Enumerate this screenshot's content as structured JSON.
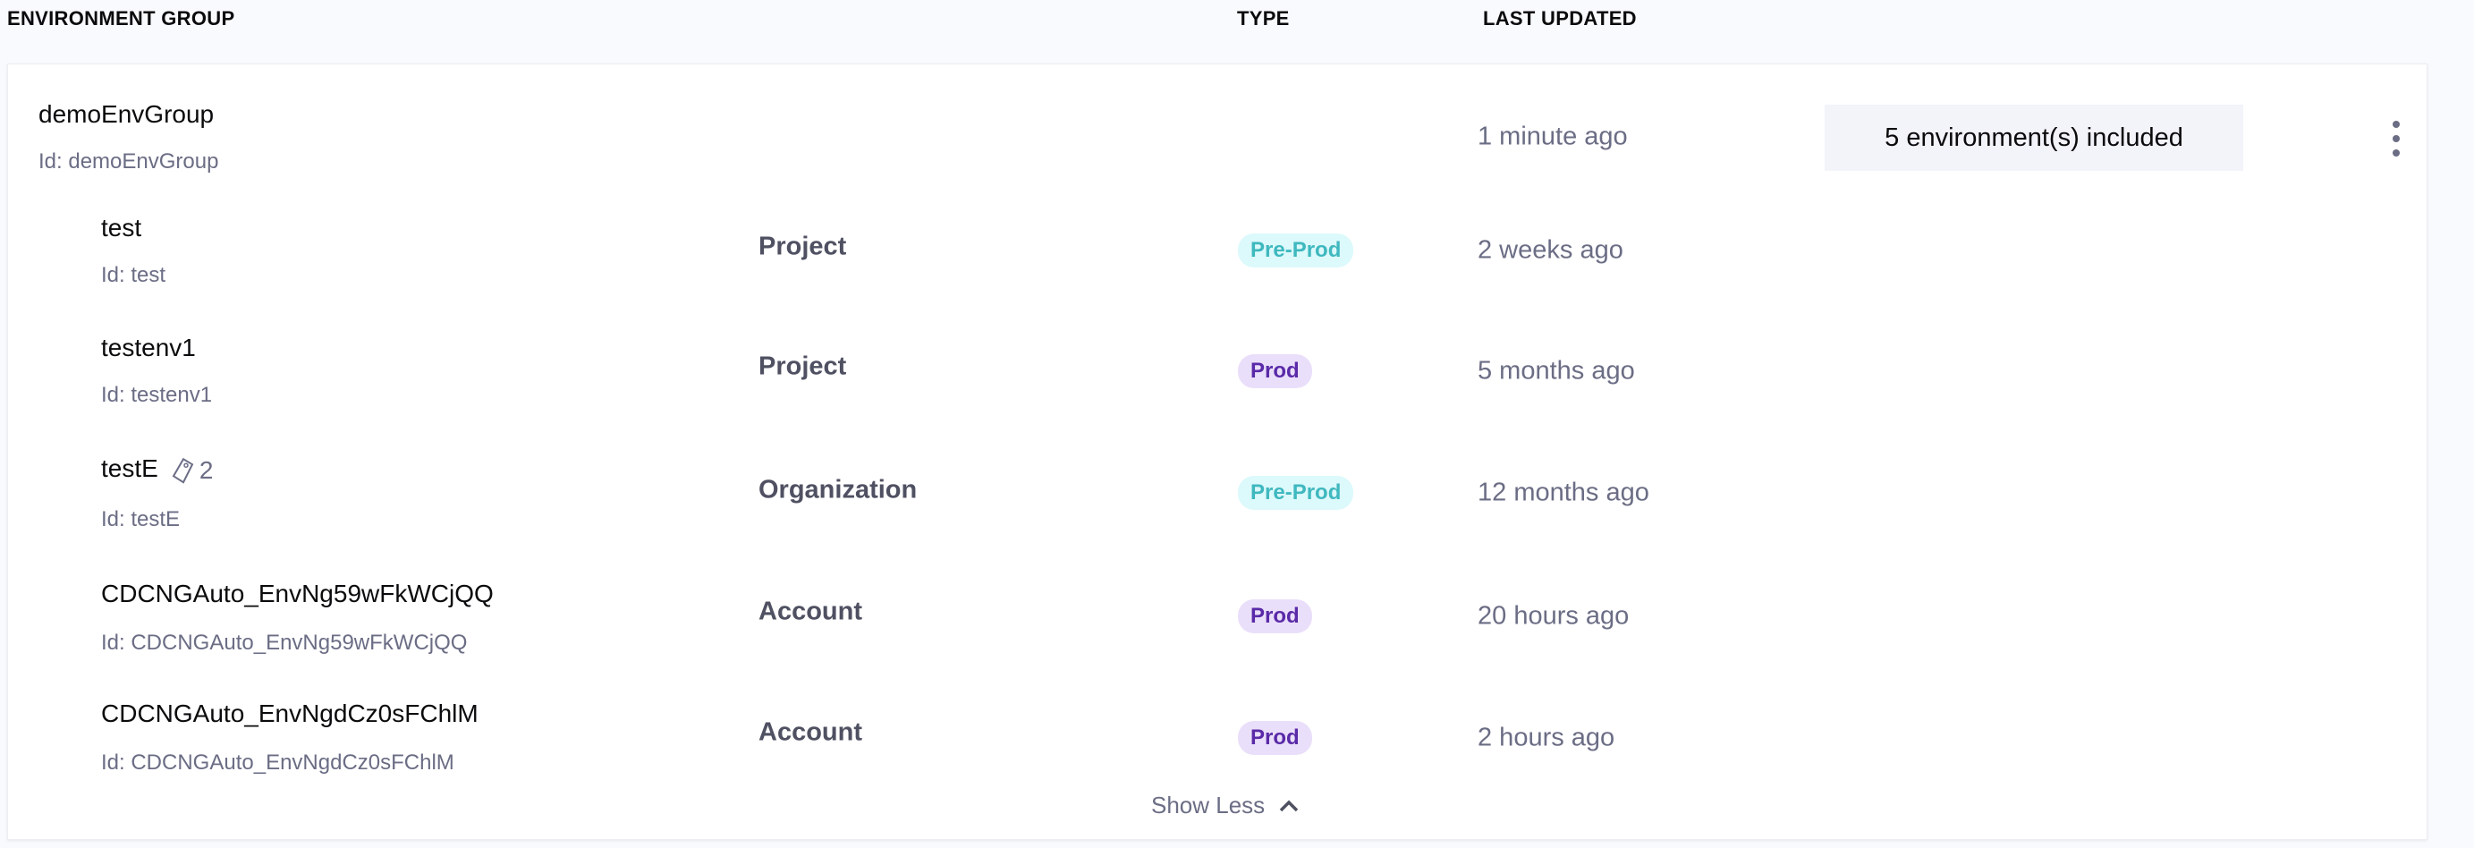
{
  "header": {
    "col_group": "ENVIRONMENT GROUP",
    "col_type": "TYPE",
    "col_updated": "LAST UPDATED"
  },
  "group": {
    "name": "demoEnvGroup",
    "id": "Id: demoEnvGroup",
    "last_updated": "1 minute ago",
    "included_label": "5 environment(s) included",
    "more_icon": "kebab-vertical-icon"
  },
  "environments": [
    {
      "name": "test",
      "id": "Id: test",
      "scope": "Project",
      "type": "Pre-Prod",
      "last_updated": "2 weeks ago"
    },
    {
      "name": "testenv1",
      "id": "Id: testenv1",
      "scope": "Project",
      "type": "Prod",
      "last_updated": "5 months ago"
    },
    {
      "name": "testE",
      "id": "Id: testE",
      "scope": "Organization",
      "type": "Pre-Prod",
      "last_updated": "12 months ago",
      "tag_count": "2"
    },
    {
      "name": "CDCNGAuto_EnvNg59wFkWCjQQ",
      "id": "Id: CDCNGAuto_EnvNg59wFkWCjQQ",
      "scope": "Account",
      "type": "Prod",
      "last_updated": "20 hours ago"
    },
    {
      "name": "CDCNGAuto_EnvNgdCz0sFChlM",
      "id": "Id: CDCNGAuto_EnvNgdCz0sFChlM",
      "scope": "Account",
      "type": "Prod",
      "last_updated": "2 hours ago"
    }
  ],
  "show_less": "Show Less",
  "colors": {
    "preprod_bg": "#dcf9fb",
    "preprod_fg": "#3fb8bf",
    "prod_bg": "#eadffa",
    "prod_fg": "#5a2aa8"
  }
}
